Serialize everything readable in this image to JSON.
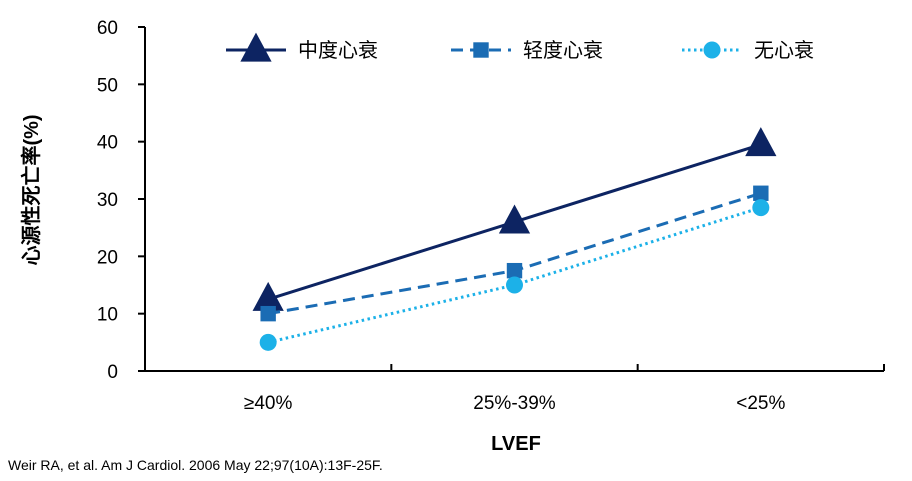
{
  "chart_data": {
    "type": "line",
    "title": "",
    "xlabel": "LVEF",
    "ylabel": "心源性死亡率(%)",
    "categories": [
      "≥40%",
      "25%-39%",
      "<25%"
    ],
    "ylim": [
      0,
      60
    ],
    "yticks": [
      0,
      10,
      20,
      30,
      40,
      50,
      60
    ],
    "grid": false,
    "legend_position": "top",
    "series": [
      {
        "name": "中度心衰",
        "values": [
          12.5,
          26,
          39.5
        ],
        "color": "#0D2462",
        "marker": "triangle",
        "line": "solid"
      },
      {
        "name": "轻度心衰",
        "values": [
          10,
          17.5,
          31
        ],
        "color": "#1B6CB4",
        "marker": "square",
        "line": "dashed"
      },
      {
        "name": "无心衰",
        "values": [
          5,
          15,
          28.5
        ],
        "color": "#1CB1E8",
        "marker": "circle",
        "line": "dotted"
      }
    ]
  },
  "source_text": "Weir RA, et al. Am J Cardiol. 2006 May 22;97(10A):13F-25F."
}
